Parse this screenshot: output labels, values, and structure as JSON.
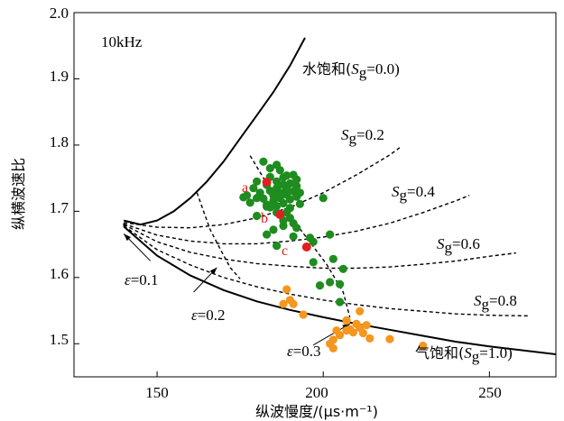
{
  "chart_data": {
    "type": "scatter",
    "title": "",
    "frequency_label": "10kHz",
    "xlabel": "纵波慢度/(μs·m⁻¹)",
    "ylabel": "纵横波速比",
    "xlim": [
      125,
      270
    ],
    "ylim": [
      1.45,
      2.0
    ],
    "xticks": [
      150,
      200,
      250
    ],
    "xtick_labels": [
      "150",
      "200",
      "250"
    ],
    "yticks": [
      1.5,
      1.6,
      1.7,
      1.8,
      1.9,
      2.0
    ],
    "ytick_labels": [
      "1.5",
      "1.6",
      "1.7",
      "1.8",
      "1.9",
      "2.0"
    ],
    "boundary_curves": [
      {
        "name": "water-saturated",
        "label_pre": "水饱和(",
        "label_sym": "S",
        "label_sub": "g",
        "label_post": "=0.0)",
        "points": [
          [
            140,
            1.686
          ],
          [
            145,
            1.68
          ],
          [
            150,
            1.686
          ],
          [
            155,
            1.7
          ],
          [
            160,
            1.72
          ],
          [
            165,
            1.745
          ],
          [
            170,
            1.775
          ],
          [
            175,
            1.81
          ],
          [
            180,
            1.845
          ],
          [
            185,
            1.88
          ],
          [
            190,
            1.92
          ],
          [
            194.5,
            1.962
          ]
        ]
      },
      {
        "name": "gas-saturated",
        "label_pre": "气饱和(",
        "label_sym": "S",
        "label_sub": "g",
        "label_post": "=1.0)",
        "points": [
          [
            140,
            1.677
          ],
          [
            150,
            1.633
          ],
          [
            160,
            1.603
          ],
          [
            170,
            1.581
          ],
          [
            180,
            1.564
          ],
          [
            190,
            1.551
          ],
          [
            200,
            1.54
          ],
          [
            210,
            1.53
          ],
          [
            220,
            1.521
          ],
          [
            230,
            1.512
          ],
          [
            240,
            1.503
          ],
          [
            250,
            1.496
          ],
          [
            260,
            1.49
          ],
          [
            270,
            1.484
          ]
        ]
      }
    ],
    "saturation_curves": [
      {
        "name": "Sg=0.2",
        "label_sym": "S",
        "label_sub": "g",
        "label_post": "=0.2",
        "points": [
          [
            140,
            1.683
          ],
          [
            150,
            1.676
          ],
          [
            160,
            1.675
          ],
          [
            170,
            1.68
          ],
          [
            180,
            1.69
          ],
          [
            190,
            1.706
          ],
          [
            200,
            1.728
          ],
          [
            210,
            1.755
          ],
          [
            220,
            1.785
          ],
          [
            223,
            1.796
          ]
        ]
      },
      {
        "name": "Sg=0.4",
        "label_sym": "S",
        "label_sub": "g",
        "label_post": "=0.4",
        "points": [
          [
            140,
            1.681
          ],
          [
            150,
            1.664
          ],
          [
            160,
            1.655
          ],
          [
            170,
            1.651
          ],
          [
            180,
            1.651
          ],
          [
            190,
            1.655
          ],
          [
            200,
            1.661
          ],
          [
            210,
            1.67
          ],
          [
            220,
            1.682
          ],
          [
            230,
            1.698
          ],
          [
            240,
            1.716
          ],
          [
            244,
            1.724
          ]
        ]
      },
      {
        "name": "Sg=0.6",
        "label_sym": "S",
        "label_sub": "g",
        "label_post": "=0.6",
        "points": [
          [
            140,
            1.68
          ],
          [
            150,
            1.654
          ],
          [
            160,
            1.638
          ],
          [
            170,
            1.628
          ],
          [
            180,
            1.621
          ],
          [
            190,
            1.617
          ],
          [
            200,
            1.614
          ],
          [
            210,
            1.614
          ],
          [
            220,
            1.616
          ],
          [
            230,
            1.62
          ],
          [
            240,
            1.625
          ],
          [
            250,
            1.632
          ],
          [
            258,
            1.637
          ]
        ]
      },
      {
        "name": "Sg=0.8",
        "label_sym": "S",
        "label_sub": "g",
        "label_post": "=0.8",
        "points": [
          [
            140,
            1.678
          ],
          [
            150,
            1.642
          ],
          [
            160,
            1.619
          ],
          [
            170,
            1.6
          ],
          [
            180,
            1.586
          ],
          [
            190,
            1.575
          ],
          [
            200,
            1.566
          ],
          [
            210,
            1.559
          ],
          [
            220,
            1.553
          ],
          [
            230,
            1.549
          ],
          [
            240,
            1.545
          ],
          [
            250,
            1.543
          ],
          [
            262,
            1.542
          ]
        ]
      }
    ],
    "porosity_curves": [
      {
        "name": "eps=0.1",
        "label_sym": "ε",
        "label_post": "=0.1",
        "points": [
          [
            140,
            1.682
          ],
          [
            140,
            1.677
          ]
        ]
      },
      {
        "name": "eps=0.2",
        "label_sym": "ε",
        "label_post": "=0.2",
        "points": [
          [
            162,
            1.728
          ],
          [
            164,
            1.7
          ],
          [
            166,
            1.672
          ],
          [
            169,
            1.643
          ],
          [
            172,
            1.615
          ],
          [
            175,
            1.598
          ]
        ]
      },
      {
        "name": "eps=0.3",
        "label_sym": "ε",
        "label_post": "=0.3",
        "points": [
          [
            178,
            1.784
          ],
          [
            183,
            1.742
          ],
          [
            189,
            1.7
          ],
          [
            195,
            1.66
          ],
          [
            201,
            1.62
          ],
          [
            206,
            1.578
          ],
          [
            208,
            1.54
          ]
        ]
      }
    ],
    "series": [
      {
        "name": "green",
        "color": "#1e8c1e",
        "points": [
          [
            176,
            1.721
          ],
          [
            177,
            1.724
          ],
          [
            178,
            1.713
          ],
          [
            179,
            1.735
          ],
          [
            180,
            1.745
          ],
          [
            181,
            1.728
          ],
          [
            182,
            1.719
          ],
          [
            183,
            1.74
          ],
          [
            183,
            1.707
          ],
          [
            184,
            1.752
          ],
          [
            184,
            1.731
          ],
          [
            185,
            1.724
          ],
          [
            185,
            1.716
          ],
          [
            186,
            1.745
          ],
          [
            186,
            1.735
          ],
          [
            186,
            1.708
          ],
          [
            187,
            1.762
          ],
          [
            187,
            1.728
          ],
          [
            187,
            1.72
          ],
          [
            188,
            1.751
          ],
          [
            188,
            1.74
          ],
          [
            188,
            1.712
          ],
          [
            189,
            1.733
          ],
          [
            189,
            1.725
          ],
          [
            190,
            1.742
          ],
          [
            190,
            1.718
          ],
          [
            190,
            1.705
          ],
          [
            191,
            1.755
          ],
          [
            191,
            1.73
          ],
          [
            192,
            1.722
          ],
          [
            192,
            1.738
          ],
          [
            193,
            1.711
          ],
          [
            193,
            1.728
          ],
          [
            182,
            1.775
          ],
          [
            184,
            1.765
          ],
          [
            186,
            1.77
          ],
          [
            189,
            1.754
          ],
          [
            192,
            1.748
          ],
          [
            190,
            1.69
          ],
          [
            191,
            1.682
          ],
          [
            192,
            1.675
          ],
          [
            188,
            1.686
          ],
          [
            186,
            1.698
          ],
          [
            184,
            1.706
          ],
          [
            183,
            1.665
          ],
          [
            186,
            1.648
          ],
          [
            191,
            1.662
          ],
          [
            196,
            1.66
          ],
          [
            197,
            1.654
          ],
          [
            200,
            1.72
          ],
          [
            202,
            1.665
          ],
          [
            203,
            1.628
          ],
          [
            202,
            1.593
          ],
          [
            205,
            1.59
          ],
          [
            206,
            1.613
          ],
          [
            205,
            1.563
          ],
          [
            207,
            1.535
          ],
          [
            199,
            1.588
          ],
          [
            197,
            1.623
          ],
          [
            180,
            1.693
          ],
          [
            183,
            1.71
          ],
          [
            189,
            1.698
          ],
          [
            188,
            1.678
          ],
          [
            185,
            1.672
          ],
          [
            180,
            1.72
          ]
        ]
      },
      {
        "name": "orange",
        "color": "#f5961e",
        "points": [
          [
            189,
            1.582
          ],
          [
            190,
            1.566
          ],
          [
            188,
            1.56
          ],
          [
            191,
            1.56
          ],
          [
            194,
            1.544
          ],
          [
            207,
            1.535
          ],
          [
            207,
            1.52
          ],
          [
            209,
            1.517
          ],
          [
            210,
            1.53
          ],
          [
            211,
            1.524
          ],
          [
            212,
            1.516
          ],
          [
            213,
            1.528
          ],
          [
            214,
            1.508
          ],
          [
            220,
            1.507
          ],
          [
            211,
            1.549
          ],
          [
            202,
            1.5
          ],
          [
            203,
            1.506
          ],
          [
            205,
            1.513
          ],
          [
            204,
            1.52
          ],
          [
            208,
            1.522
          ],
          [
            230,
            1.497
          ],
          [
            203,
            1.493
          ]
        ]
      },
      {
        "name": "red",
        "color": "#e02020",
        "points": [
          [
            183,
            1.744
          ],
          [
            187,
            1.695
          ],
          [
            195,
            1.646
          ]
        ]
      }
    ],
    "point_labels": [
      {
        "text": "a",
        "x": 180.5,
        "y": 1.734
      },
      {
        "text": "b",
        "x": 184.5,
        "y": 1.683
      },
      {
        "text": "c",
        "x": 191.5,
        "y": 1.634
      }
    ],
    "annotation_arrows": [
      {
        "name": "eps01",
        "from": [
          148,
          1.625
        ],
        "to": [
          140,
          1.666
        ]
      },
      {
        "name": "eps02",
        "from": [
          161,
          1.578
        ],
        "to": [
          168,
          1.615
        ]
      },
      {
        "name": "eps03",
        "from": [
          197,
          1.498
        ],
        "to": [
          208,
          1.53
        ]
      }
    ]
  }
}
